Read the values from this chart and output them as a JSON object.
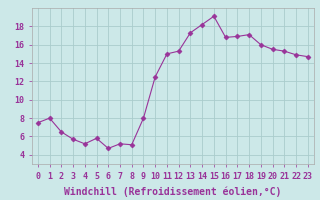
{
  "x": [
    0,
    1,
    2,
    3,
    4,
    5,
    6,
    7,
    8,
    9,
    10,
    11,
    12,
    13,
    14,
    15,
    16,
    17,
    18,
    19,
    20,
    21,
    22,
    23
  ],
  "y": [
    7.5,
    8.0,
    6.5,
    5.7,
    5.2,
    5.8,
    4.7,
    5.2,
    5.1,
    8.0,
    12.5,
    15.0,
    15.3,
    17.3,
    18.2,
    19.1,
    16.8,
    16.9,
    17.1,
    16.0,
    15.5,
    15.3,
    14.9,
    14.7
  ],
  "line_color": "#993399",
  "marker": "D",
  "marker_size": 2.5,
  "bg_color": "#cce8e8",
  "grid_color": "#aacccc",
  "spine_color": "#aaaaaa",
  "xlabel": "Windchill (Refroidissement éolien,°C)",
  "xlabel_fontsize": 7,
  "tick_fontsize": 6,
  "ylim": [
    3,
    20
  ],
  "xlim": [
    -0.5,
    23.5
  ],
  "yticks": [
    4,
    6,
    8,
    10,
    12,
    14,
    16,
    18
  ],
  "xticks": [
    0,
    1,
    2,
    3,
    4,
    5,
    6,
    7,
    8,
    9,
    10,
    11,
    12,
    13,
    14,
    15,
    16,
    17,
    18,
    19,
    20,
    21,
    22,
    23
  ]
}
